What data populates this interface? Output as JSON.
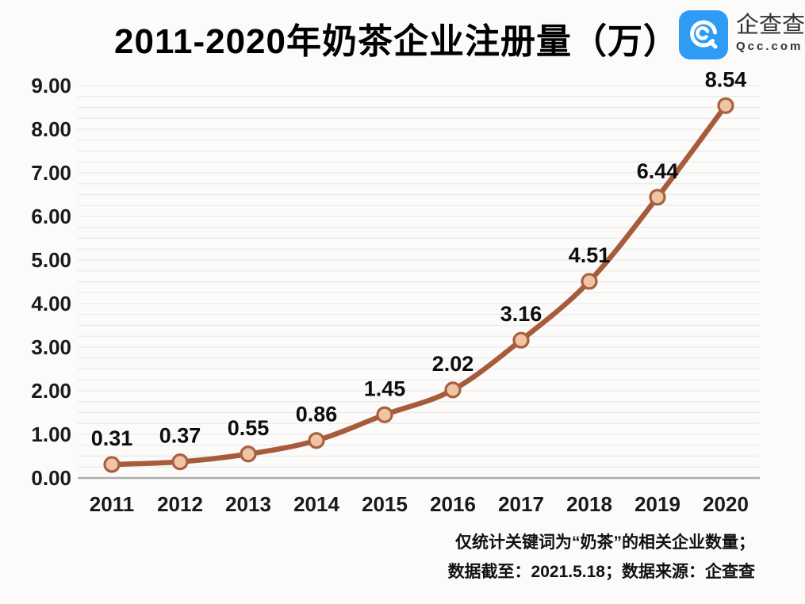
{
  "header": {
    "title": "2011-2020年奶茶企业注册量（万）",
    "logo": {
      "name": "企查查",
      "domain": "Qcc.com",
      "brand_color": "#2E9CF4"
    }
  },
  "chart_data": {
    "type": "line",
    "title": "2011-2020年奶茶企业注册量（万）",
    "categories": [
      "2011",
      "2012",
      "2013",
      "2014",
      "2015",
      "2016",
      "2017",
      "2018",
      "2019",
      "2020"
    ],
    "values": [
      0.31,
      0.37,
      0.55,
      0.86,
      1.45,
      2.02,
      3.16,
      4.51,
      6.44,
      8.54
    ],
    "xlabel": "",
    "ylabel": "",
    "ylim": [
      0,
      9
    ],
    "ytick_step": 1,
    "ytick_decimals": 2,
    "minor_grid_step": 0.25,
    "grid": true,
    "legend": "none",
    "colors": {
      "line": "#A65C3B",
      "marker_fill": "#EFC5A5",
      "marker_stroke": "#A86140",
      "grid": "#ECECEC",
      "axis": "#ADADAD",
      "tick_label": "#1A1A1A",
      "data_label": "#0D0D0D"
    }
  },
  "footer": {
    "line1": "仅统计关键词为“奶茶”的相关企业数量；",
    "line2": "数据截至：2021.5.18；数据来源：企查查"
  }
}
